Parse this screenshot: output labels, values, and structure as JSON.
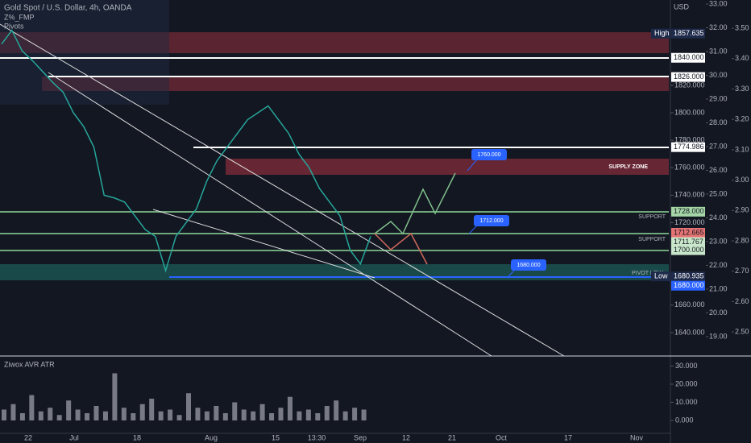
{
  "header": {
    "symbol": "Gold Spot / U.S. Dollar, 4h, OANDA",
    "indicator1": "Z%_FMP",
    "indicator2": "Pivots"
  },
  "price_axis": {
    "unit": "USD",
    "ylim": [
      1882.06,
      1624.15
    ],
    "yticks": [
      {
        "value": 1820,
        "label": "1820.000"
      },
      {
        "value": 1800,
        "label": "1800.000"
      },
      {
        "value": 1780,
        "label": "1780.000"
      },
      {
        "value": 1760,
        "label": "1760.000"
      },
      {
        "value": 1740,
        "label": "1740.000"
      },
      {
        "value": 1720,
        "label": "1720.000"
      },
      {
        "value": 1660,
        "label": "1660.000"
      },
      {
        "value": 1640,
        "label": "1640.000"
      }
    ]
  },
  "silver_axis": {
    "ylim": [
      33.17,
      18.25
    ],
    "yticks": [
      {
        "value": 33,
        "label": "33.00"
      },
      {
        "value": 32,
        "label": "32.00"
      },
      {
        "value": 31,
        "label": "31.00"
      },
      {
        "value": 30,
        "label": "30.00"
      },
      {
        "value": 29,
        "label": "29.00"
      },
      {
        "value": 28,
        "label": "28.00"
      },
      {
        "value": 27,
        "label": "27.00"
      },
      {
        "value": 26,
        "label": "26.00"
      },
      {
        "value": 25,
        "label": "25.00"
      },
      {
        "value": 24,
        "label": "24.00"
      },
      {
        "value": 23,
        "label": "23.00"
      },
      {
        "value": 22,
        "label": "22.00"
      },
      {
        "value": 21,
        "label": "21.00"
      },
      {
        "value": 20,
        "label": "20.00"
      },
      {
        "value": 19,
        "label": "19.00"
      }
    ]
  },
  "ratio_axis": {
    "ylim": [
      3.593,
      2.426
    ],
    "yticks": [
      {
        "value": 3.5,
        "label": "3.50"
      },
      {
        "value": 3.4,
        "label": "3.40"
      },
      {
        "value": 3.3,
        "label": "3.30"
      },
      {
        "value": 3.2,
        "label": "3.20"
      },
      {
        "value": 3.1,
        "label": "3.10"
      },
      {
        "value": 3,
        "label": "3.00"
      },
      {
        "value": 2.9,
        "label": "2.90"
      },
      {
        "value": 2.8,
        "label": "2.80"
      },
      {
        "value": 2.7,
        "label": "2.70"
      },
      {
        "value": 2.6,
        "label": "2.60"
      },
      {
        "value": 2.5,
        "label": "2.50"
      }
    ]
  },
  "price_tags": [
    {
      "name": "High",
      "value": 1857.635,
      "label": "1857.635",
      "style": "dark"
    },
    {
      "value": 1840,
      "label": "1840.000",
      "style": "white"
    },
    {
      "value": 1826,
      "label": "1826.000",
      "style": "white"
    },
    {
      "value": 1774.986,
      "label": "1774.986",
      "style": "white"
    },
    {
      "value": 1728,
      "label": "1728.000",
      "style": "green"
    },
    {
      "value": 1712.665,
      "label": "1712.665",
      "style": "red"
    },
    {
      "value": 1711.767,
      "label": "1711.767",
      "style": "lightgreen"
    },
    {
      "value": 1700,
      "label": "1700.000",
      "style": "lightgreen"
    },
    {
      "name": "Low",
      "value": 1680.935,
      "label": "1680.935",
      "style": "dark"
    },
    {
      "value": 1680,
      "label": "1680.000",
      "style": "blue"
    }
  ],
  "price": {
    "values": [
      1850,
      1860,
      1845,
      1838,
      1830,
      1822,
      1815,
      1800,
      1790,
      1775,
      1740,
      1738,
      1735,
      1725,
      1715,
      1710,
      1685,
      1710,
      1720,
      1730,
      1750,
      1765,
      1775,
      1785,
      1795,
      1800,
      1805,
      1795,
      1785,
      1770,
      1760,
      1745,
      1735,
      1725,
      1700,
      1690,
      1710
    ]
  },
  "annotations": {
    "supply": "SUPPLY ZONE",
    "support1": "SUPPORT",
    "support2": "SUPPORT",
    "pivot": "PIVOT LOW",
    "callout1": "1760.000",
    "callout2": "1712.000",
    "callout3": "1680.000"
  },
  "atr_pane": {
    "title": "Ziwox AVR ATR",
    "ylim": [
      34.2,
      -8
    ],
    "yticks": [
      {
        "value": 30,
        "label": "30.000"
      },
      {
        "value": 20,
        "label": "20.000"
      },
      {
        "value": 10,
        "label": "10.000"
      },
      {
        "value": 0,
        "label": "0.000"
      }
    ],
    "values": [
      6,
      9,
      4,
      14,
      5,
      7,
      3,
      11,
      6,
      4,
      8,
      5,
      26,
      7,
      4,
      9,
      12,
      5,
      6,
      3,
      15,
      7,
      5,
      8,
      4,
      10,
      6,
      5,
      9,
      4,
      7,
      13,
      5,
      6,
      4,
      8,
      11,
      5,
      7,
      6
    ]
  },
  "time_axis": {
    "labels": [
      "22",
      "Jul",
      "18",
      "Aug",
      "15",
      "13:30",
      "Sep",
      "12",
      "21",
      "Oct",
      "17",
      "Nov"
    ]
  }
}
